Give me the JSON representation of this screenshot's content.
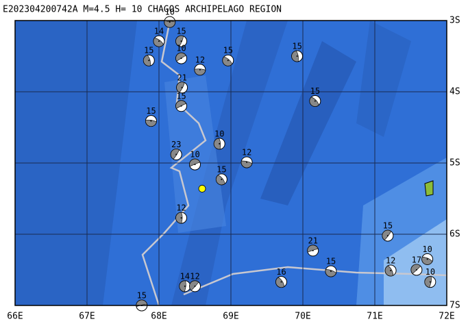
{
  "map": {
    "title": "E202304200742A M=4.5 H= 10 CHAGOS ARCHIPELAGO REGION",
    "xlim": [
      66,
      72
    ],
    "ylim": [
      -7,
      -3
    ],
    "xticks": [
      {
        "value": 66,
        "label": "66E"
      },
      {
        "value": 67,
        "label": "67E"
      },
      {
        "value": 68,
        "label": "68E"
      },
      {
        "value": 69,
        "label": "69E"
      },
      {
        "value": 70,
        "label": "70E"
      },
      {
        "value": 71,
        "label": "71E"
      },
      {
        "value": 72,
        "label": "72E"
      }
    ],
    "yticks": [
      {
        "value": -3,
        "label": "3S"
      },
      {
        "value": -4,
        "label": "4S"
      },
      {
        "value": -5,
        "label": "5S"
      },
      {
        "value": -6,
        "label": "6S"
      },
      {
        "value": -7,
        "label": "7S"
      }
    ],
    "event": {
      "lon": 68.6,
      "lat": -5.36
    },
    "events": [
      {
        "lon": 68.15,
        "lat": -3.02,
        "depth": 10
      },
      {
        "lon": 68.0,
        "lat": -3.29,
        "depth": 14
      },
      {
        "lon": 67.86,
        "lat": -3.56,
        "depth": 15
      },
      {
        "lon": 68.31,
        "lat": -3.29,
        "depth": 15
      },
      {
        "lon": 68.31,
        "lat": -3.53,
        "depth": 10
      },
      {
        "lon": 68.57,
        "lat": -3.69,
        "depth": 12
      },
      {
        "lon": 68.96,
        "lat": -3.56,
        "depth": 15
      },
      {
        "lon": 69.92,
        "lat": -3.5,
        "depth": 15
      },
      {
        "lon": 68.32,
        "lat": -3.94,
        "depth": 21
      },
      {
        "lon": 68.31,
        "lat": -4.2,
        "depth": 15
      },
      {
        "lon": 67.89,
        "lat": -4.41,
        "depth": 15
      },
      {
        "lon": 70.17,
        "lat": -4.13,
        "depth": 15
      },
      {
        "lon": 68.84,
        "lat": -4.73,
        "depth": 10
      },
      {
        "lon": 68.24,
        "lat": -4.88,
        "depth": 23
      },
      {
        "lon": 68.5,
        "lat": -5.02,
        "depth": 10
      },
      {
        "lon": 69.22,
        "lat": -4.99,
        "depth": 12
      },
      {
        "lon": 68.87,
        "lat": -5.23,
        "depth": 15
      },
      {
        "lon": 68.31,
        "lat": -5.77,
        "depth": 12
      },
      {
        "lon": 71.18,
        "lat": -6.02,
        "depth": 15
      },
      {
        "lon": 70.14,
        "lat": -6.23,
        "depth": 21
      },
      {
        "lon": 70.39,
        "lat": -6.52,
        "depth": 15
      },
      {
        "lon": 69.7,
        "lat": -6.67,
        "depth": 16
      },
      {
        "lon": 68.36,
        "lat": -6.73,
        "depth": 14
      },
      {
        "lon": 68.5,
        "lat": -6.73,
        "depth": 12
      },
      {
        "lon": 67.76,
        "lat": -7.0,
        "depth": 15
      },
      {
        "lon": 71.73,
        "lat": -6.35,
        "depth": 10
      },
      {
        "lon": 71.22,
        "lat": -6.51,
        "depth": 12
      },
      {
        "lon": 71.77,
        "lat": -6.67,
        "depth": 10
      },
      {
        "lon": 71.58,
        "lat": -6.5,
        "depth": 17
      }
    ]
  }
}
